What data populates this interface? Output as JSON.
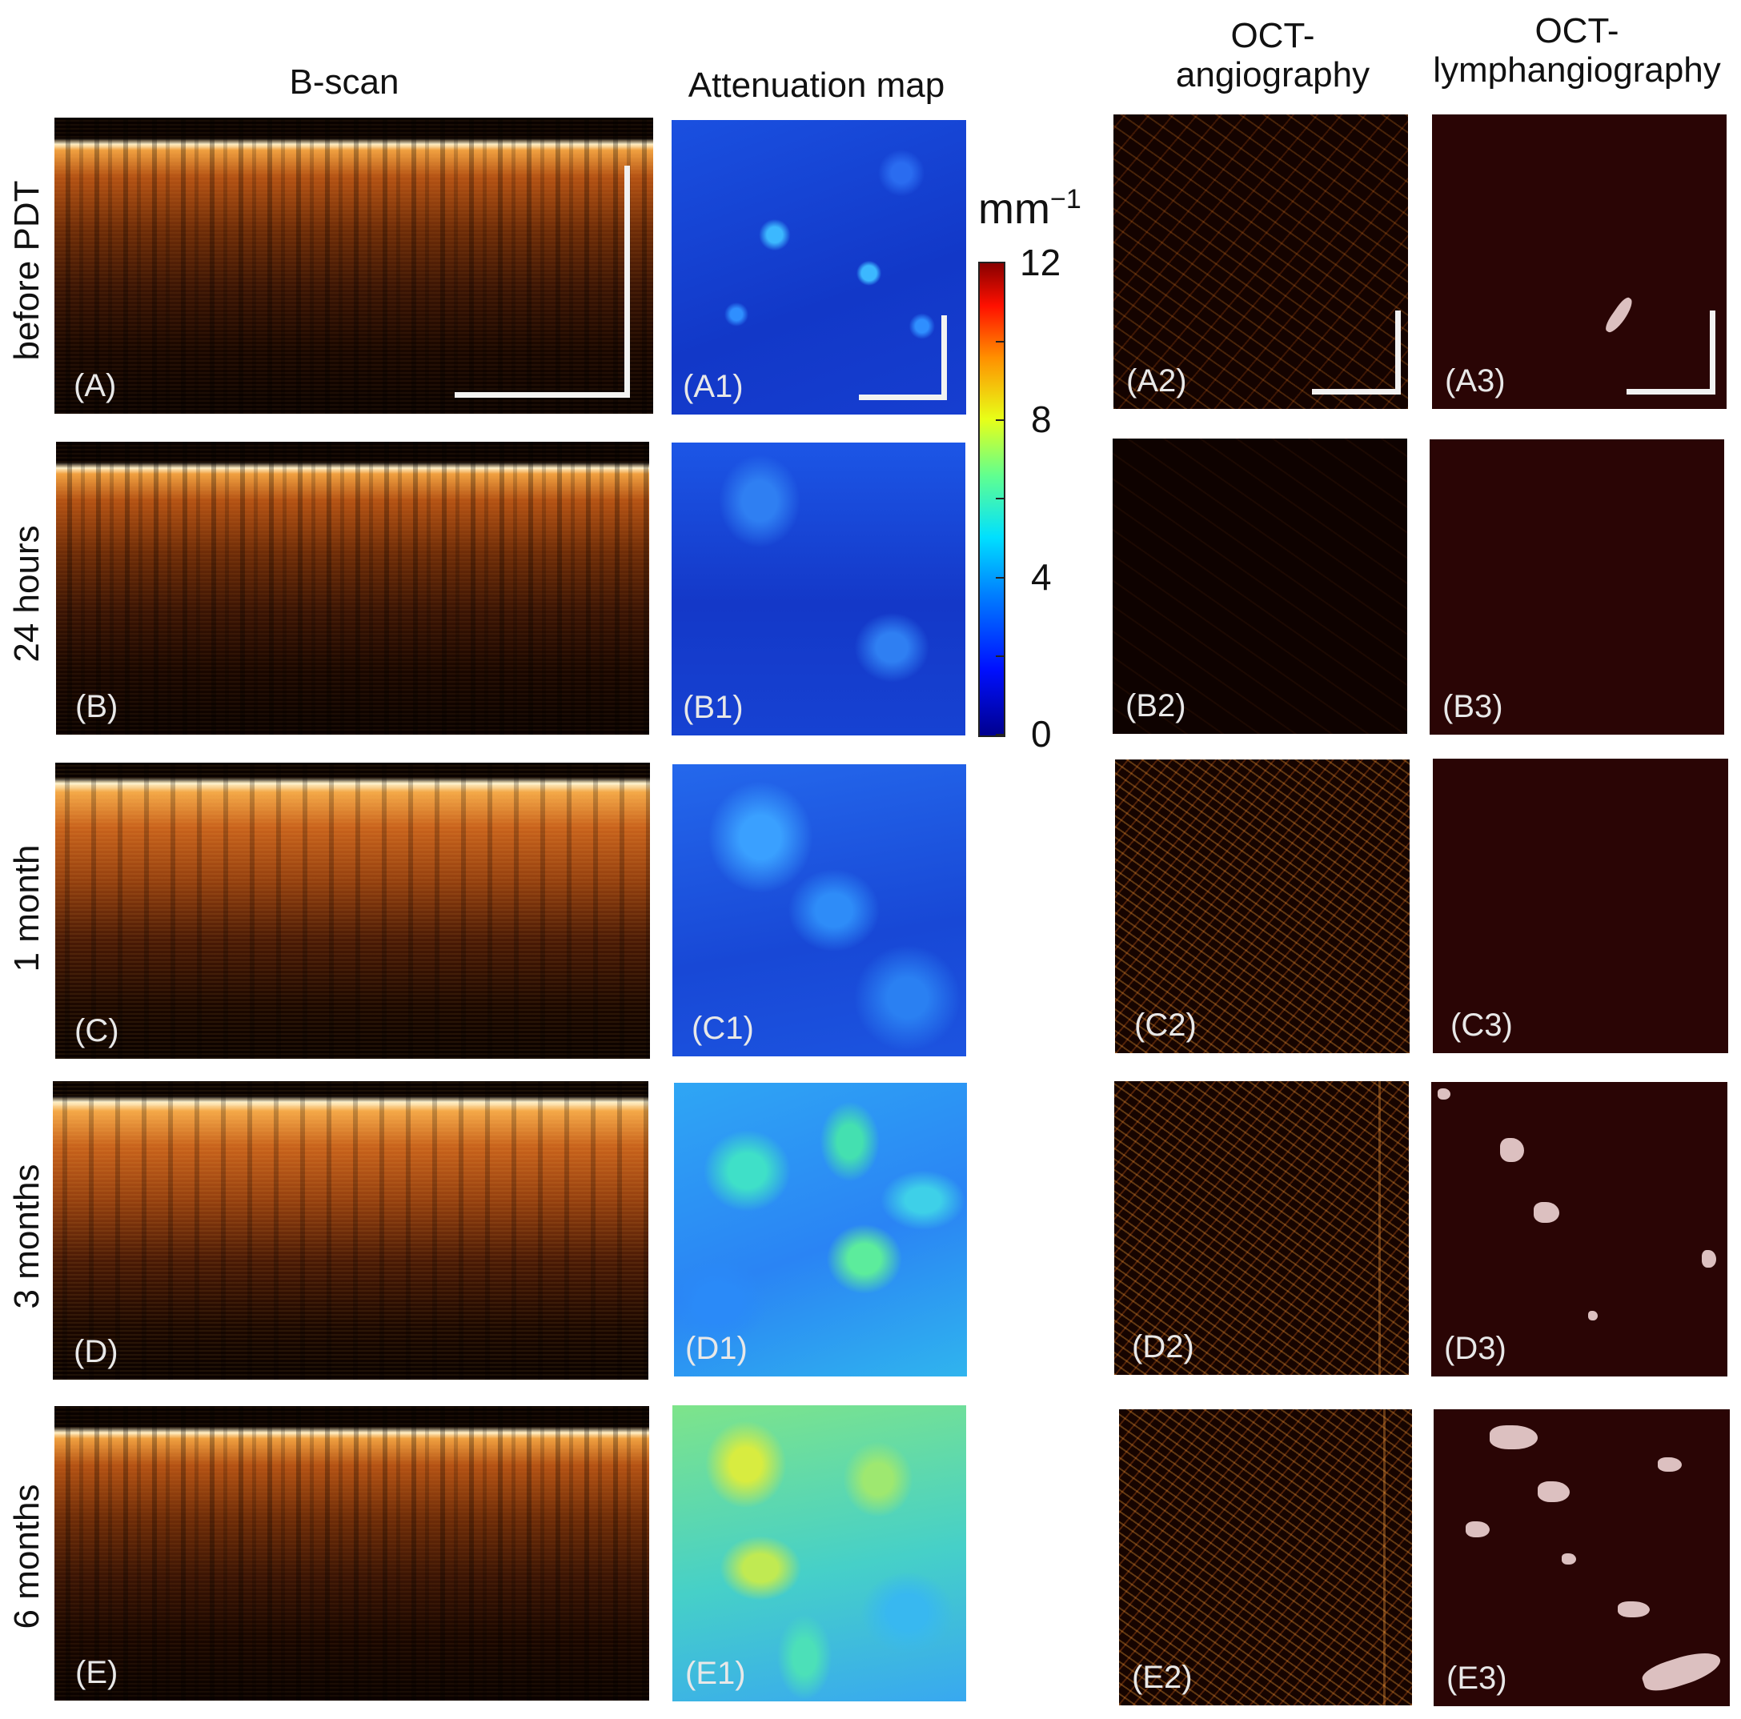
{
  "columns": {
    "bscan": "B-scan",
    "attenuation": "Attenuation map",
    "angiography": [
      "OCT-",
      "angiography"
    ],
    "lymphangiography": [
      "OCT-",
      "lymphangiography"
    ]
  },
  "rows": [
    "before PDT",
    "24 hours",
    "1 month",
    "3 months",
    "6 months"
  ],
  "panel_tags": {
    "bscan": [
      "(A)",
      "(B)",
      "(C)",
      "(D)",
      "(E)"
    ],
    "attenuation": [
      "(A1)",
      "(B1)",
      "(C1)",
      "(D1)",
      "(E1)"
    ],
    "angiography": [
      "(A2)",
      "(B2)",
      "(C2)",
      "(D2)",
      "(E2)"
    ],
    "lymphangiography": [
      "(A3)",
      "(B3)",
      "(C3)",
      "(D3)",
      "(E3)"
    ]
  },
  "colorbar": {
    "unit": "mm",
    "unit_exponent": "−1",
    "ticks": [
      "12",
      "8",
      "4",
      "0"
    ],
    "range": [
      0,
      12
    ],
    "colormap": "jet"
  },
  "colors": {
    "oct_background": "#0a0200",
    "lymph_background": "#2a0505",
    "scalebar": "#f2f2f2"
  }
}
